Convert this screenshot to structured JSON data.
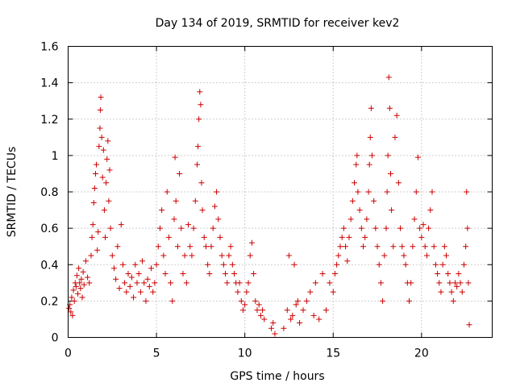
{
  "chart_data": {
    "type": "scatter",
    "title": "Day 134 of 2019, SRMTID for receiver kev2",
    "xlabel": "GPS time / hours",
    "ylabel": "SRMTID / TECUs",
    "xlim": [
      0,
      24
    ],
    "ylim": [
      0,
      1.6
    ],
    "xticks": [
      0,
      5,
      10,
      15,
      20
    ],
    "xtick_labels": [
      "0",
      "5",
      "10",
      "15",
      "20"
    ],
    "yticks": [
      0,
      0.2,
      0.4,
      0.6,
      0.8,
      1,
      1.2,
      1.4,
      1.6
    ],
    "ytick_labels": [
      "0",
      "0.2",
      "0.4",
      "0.6",
      "0.8",
      "1",
      "1.2",
      "1.4",
      "1.6"
    ],
    "grid": true,
    "marker": "+",
    "color": "#cc0000",
    "series": [
      {
        "name": "kev2",
        "points": [
          [
            0.05,
            0.16
          ],
          [
            0.1,
            0.18
          ],
          [
            0.15,
            0.14
          ],
          [
            0.2,
            0.22
          ],
          [
            0.25,
            0.12
          ],
          [
            0.3,
            0.26
          ],
          [
            0.35,
            0.2
          ],
          [
            0.4,
            0.3
          ],
          [
            0.45,
            0.28
          ],
          [
            0.5,
            0.34
          ],
          [
            0.55,
            0.24
          ],
          [
            0.6,
            0.38
          ],
          [
            0.65,
            0.3
          ],
          [
            0.7,
            0.27
          ],
          [
            0.75,
            0.32
          ],
          [
            0.8,
            0.22
          ],
          [
            0.85,
            0.36
          ],
          [
            0.9,
            0.29
          ],
          [
            1.0,
            0.42
          ],
          [
            1.1,
            0.33
          ],
          [
            1.2,
            0.3
          ],
          [
            1.3,
            0.45
          ],
          [
            1.35,
            0.55
          ],
          [
            1.4,
            0.62
          ],
          [
            1.45,
            0.74
          ],
          [
            1.5,
            0.82
          ],
          [
            1.55,
            0.9
          ],
          [
            1.6,
            0.95
          ],
          [
            1.65,
            0.48
          ],
          [
            1.7,
            0.58
          ],
          [
            1.75,
            1.05
          ],
          [
            1.8,
            1.15
          ],
          [
            1.82,
            1.25
          ],
          [
            1.85,
            1.32
          ],
          [
            1.9,
            1.1
          ],
          [
            1.95,
            0.88
          ],
          [
            2.0,
            1.03
          ],
          [
            2.05,
            0.7
          ],
          [
            2.1,
            0.55
          ],
          [
            2.15,
            0.85
          ],
          [
            2.2,
            0.98
          ],
          [
            2.25,
            1.08
          ],
          [
            2.3,
            0.75
          ],
          [
            2.35,
            0.92
          ],
          [
            2.4,
            0.6
          ],
          [
            2.5,
            0.45
          ],
          [
            2.6,
            0.38
          ],
          [
            2.7,
            0.32
          ],
          [
            2.8,
            0.5
          ],
          [
            2.9,
            0.27
          ],
          [
            3.0,
            0.62
          ],
          [
            3.1,
            0.4
          ],
          [
            3.2,
            0.3
          ],
          [
            3.3,
            0.25
          ],
          [
            3.4,
            0.35
          ],
          [
            3.5,
            0.28
          ],
          [
            3.6,
            0.33
          ],
          [
            3.7,
            0.22
          ],
          [
            3.8,
            0.4
          ],
          [
            3.9,
            0.3
          ],
          [
            4.0,
            0.35
          ],
          [
            4.1,
            0.25
          ],
          [
            4.2,
            0.42
          ],
          [
            4.3,
            0.3
          ],
          [
            4.4,
            0.2
          ],
          [
            4.5,
            0.32
          ],
          [
            4.6,
            0.28
          ],
          [
            4.7,
            0.38
          ],
          [
            4.8,
            0.25
          ],
          [
            4.9,
            0.3
          ],
          [
            5.0,
            0.4
          ],
          [
            5.1,
            0.5
          ],
          [
            5.2,
            0.6
          ],
          [
            5.3,
            0.7
          ],
          [
            5.4,
            0.45
          ],
          [
            5.5,
            0.35
          ],
          [
            5.6,
            0.8
          ],
          [
            5.7,
            0.55
          ],
          [
            5.8,
            0.3
          ],
          [
            5.9,
            0.2
          ],
          [
            6.0,
            0.65
          ],
          [
            6.05,
            0.99
          ],
          [
            6.1,
            0.75
          ],
          [
            6.2,
            0.5
          ],
          [
            6.3,
            0.9
          ],
          [
            6.4,
            0.6
          ],
          [
            6.5,
            0.35
          ],
          [
            6.6,
            0.45
          ],
          [
            6.7,
            0.3
          ],
          [
            6.8,
            0.62
          ],
          [
            6.9,
            0.5
          ],
          [
            7.0,
            0.45
          ],
          [
            7.1,
            0.6
          ],
          [
            7.2,
            0.75
          ],
          [
            7.3,
            0.95
          ],
          [
            7.35,
            1.05
          ],
          [
            7.4,
            1.2
          ],
          [
            7.45,
            1.35
          ],
          [
            7.5,
            1.28
          ],
          [
            7.55,
            0.85
          ],
          [
            7.6,
            0.7
          ],
          [
            7.7,
            0.55
          ],
          [
            7.8,
            0.5
          ],
          [
            7.9,
            0.4
          ],
          [
            8.0,
            0.35
          ],
          [
            8.1,
            0.5
          ],
          [
            8.2,
            0.6
          ],
          [
            8.3,
            0.72
          ],
          [
            8.4,
            0.8
          ],
          [
            8.5,
            0.65
          ],
          [
            8.6,
            0.55
          ],
          [
            8.7,
            0.45
          ],
          [
            8.8,
            0.4
          ],
          [
            8.9,
            0.35
          ],
          [
            9.0,
            0.3
          ],
          [
            9.1,
            0.45
          ],
          [
            9.2,
            0.5
          ],
          [
            9.3,
            0.4
          ],
          [
            9.4,
            0.35
          ],
          [
            9.5,
            0.3
          ],
          [
            9.6,
            0.25
          ],
          [
            9.7,
            0.3
          ],
          [
            9.8,
            0.2
          ],
          [
            9.9,
            0.15
          ],
          [
            10.0,
            0.18
          ],
          [
            10.1,
            0.25
          ],
          [
            10.2,
            0.3
          ],
          [
            10.3,
            0.45
          ],
          [
            10.4,
            0.52
          ],
          [
            10.5,
            0.35
          ],
          [
            10.6,
            0.2
          ],
          [
            10.7,
            0.15
          ],
          [
            10.8,
            0.18
          ],
          [
            10.9,
            0.12
          ],
          [
            11.0,
            0.15
          ],
          [
            11.1,
            0.1
          ],
          [
            11.5,
            0.05
          ],
          [
            11.6,
            0.08
          ],
          [
            11.7,
            0.02
          ],
          [
            12.2,
            0.05
          ],
          [
            12.4,
            0.15
          ],
          [
            12.5,
            0.45
          ],
          [
            12.6,
            0.1
          ],
          [
            12.7,
            0.12
          ],
          [
            12.8,
            0.4
          ],
          [
            12.9,
            0.18
          ],
          [
            13.0,
            0.2
          ],
          [
            13.1,
            0.08
          ],
          [
            13.3,
            0.15
          ],
          [
            13.5,
            0.2
          ],
          [
            13.7,
            0.25
          ],
          [
            13.9,
            0.12
          ],
          [
            14.0,
            0.3
          ],
          [
            14.2,
            0.1
          ],
          [
            14.4,
            0.35
          ],
          [
            14.6,
            0.15
          ],
          [
            14.8,
            0.3
          ],
          [
            15.0,
            0.25
          ],
          [
            15.1,
            0.35
          ],
          [
            15.2,
            0.4
          ],
          [
            15.3,
            0.45
          ],
          [
            15.4,
            0.5
          ],
          [
            15.5,
            0.55
          ],
          [
            15.6,
            0.6
          ],
          [
            15.7,
            0.5
          ],
          [
            15.8,
            0.42
          ],
          [
            15.9,
            0.55
          ],
          [
            16.0,
            0.65
          ],
          [
            16.1,
            0.75
          ],
          [
            16.2,
            0.85
          ],
          [
            16.3,
            0.95
          ],
          [
            16.35,
            1.0
          ],
          [
            16.4,
            0.8
          ],
          [
            16.5,
            0.7
          ],
          [
            16.6,
            0.6
          ],
          [
            16.7,
            0.5
          ],
          [
            16.8,
            0.55
          ],
          [
            16.9,
            0.65
          ],
          [
            17.0,
            0.8
          ],
          [
            17.05,
            0.95
          ],
          [
            17.1,
            1.1
          ],
          [
            17.15,
            1.26
          ],
          [
            17.2,
            1.0
          ],
          [
            17.3,
            0.75
          ],
          [
            17.4,
            0.6
          ],
          [
            17.5,
            0.5
          ],
          [
            17.6,
            0.4
          ],
          [
            17.7,
            0.3
          ],
          [
            17.8,
            0.2
          ],
          [
            17.9,
            0.45
          ],
          [
            18.0,
            0.6
          ],
          [
            18.05,
            0.8
          ],
          [
            18.1,
            1.0
          ],
          [
            18.15,
            1.43
          ],
          [
            18.2,
            1.26
          ],
          [
            18.25,
            0.9
          ],
          [
            18.3,
            0.7
          ],
          [
            18.4,
            0.5
          ],
          [
            18.5,
            1.1
          ],
          [
            18.6,
            1.22
          ],
          [
            18.7,
            0.85
          ],
          [
            18.8,
            0.6
          ],
          [
            18.9,
            0.5
          ],
          [
            19.0,
            0.45
          ],
          [
            19.1,
            0.4
          ],
          [
            19.2,
            0.3
          ],
          [
            19.3,
            0.2
          ],
          [
            19.4,
            0.3
          ],
          [
            19.5,
            0.5
          ],
          [
            19.6,
            0.65
          ],
          [
            19.7,
            0.8
          ],
          [
            19.8,
            0.99
          ],
          [
            19.9,
            0.6
          ],
          [
            20.0,
            0.55
          ],
          [
            20.1,
            0.62
          ],
          [
            20.2,
            0.5
          ],
          [
            20.3,
            0.45
          ],
          [
            20.4,
            0.6
          ],
          [
            20.5,
            0.7
          ],
          [
            20.6,
            0.8
          ],
          [
            20.7,
            0.5
          ],
          [
            20.8,
            0.4
          ],
          [
            20.9,
            0.35
          ],
          [
            21.0,
            0.3
          ],
          [
            21.1,
            0.25
          ],
          [
            21.2,
            0.4
          ],
          [
            21.3,
            0.5
          ],
          [
            21.4,
            0.45
          ],
          [
            21.5,
            0.35
          ],
          [
            21.6,
            0.3
          ],
          [
            21.7,
            0.25
          ],
          [
            21.8,
            0.2
          ],
          [
            21.9,
            0.3
          ],
          [
            22.0,
            0.28
          ],
          [
            22.1,
            0.35
          ],
          [
            22.2,
            0.3
          ],
          [
            22.3,
            0.25
          ],
          [
            22.4,
            0.4
          ],
          [
            22.5,
            0.5
          ],
          [
            22.55,
            0.8
          ],
          [
            22.6,
            0.6
          ],
          [
            22.65,
            0.3
          ],
          [
            22.7,
            0.07
          ]
        ]
      }
    ]
  }
}
